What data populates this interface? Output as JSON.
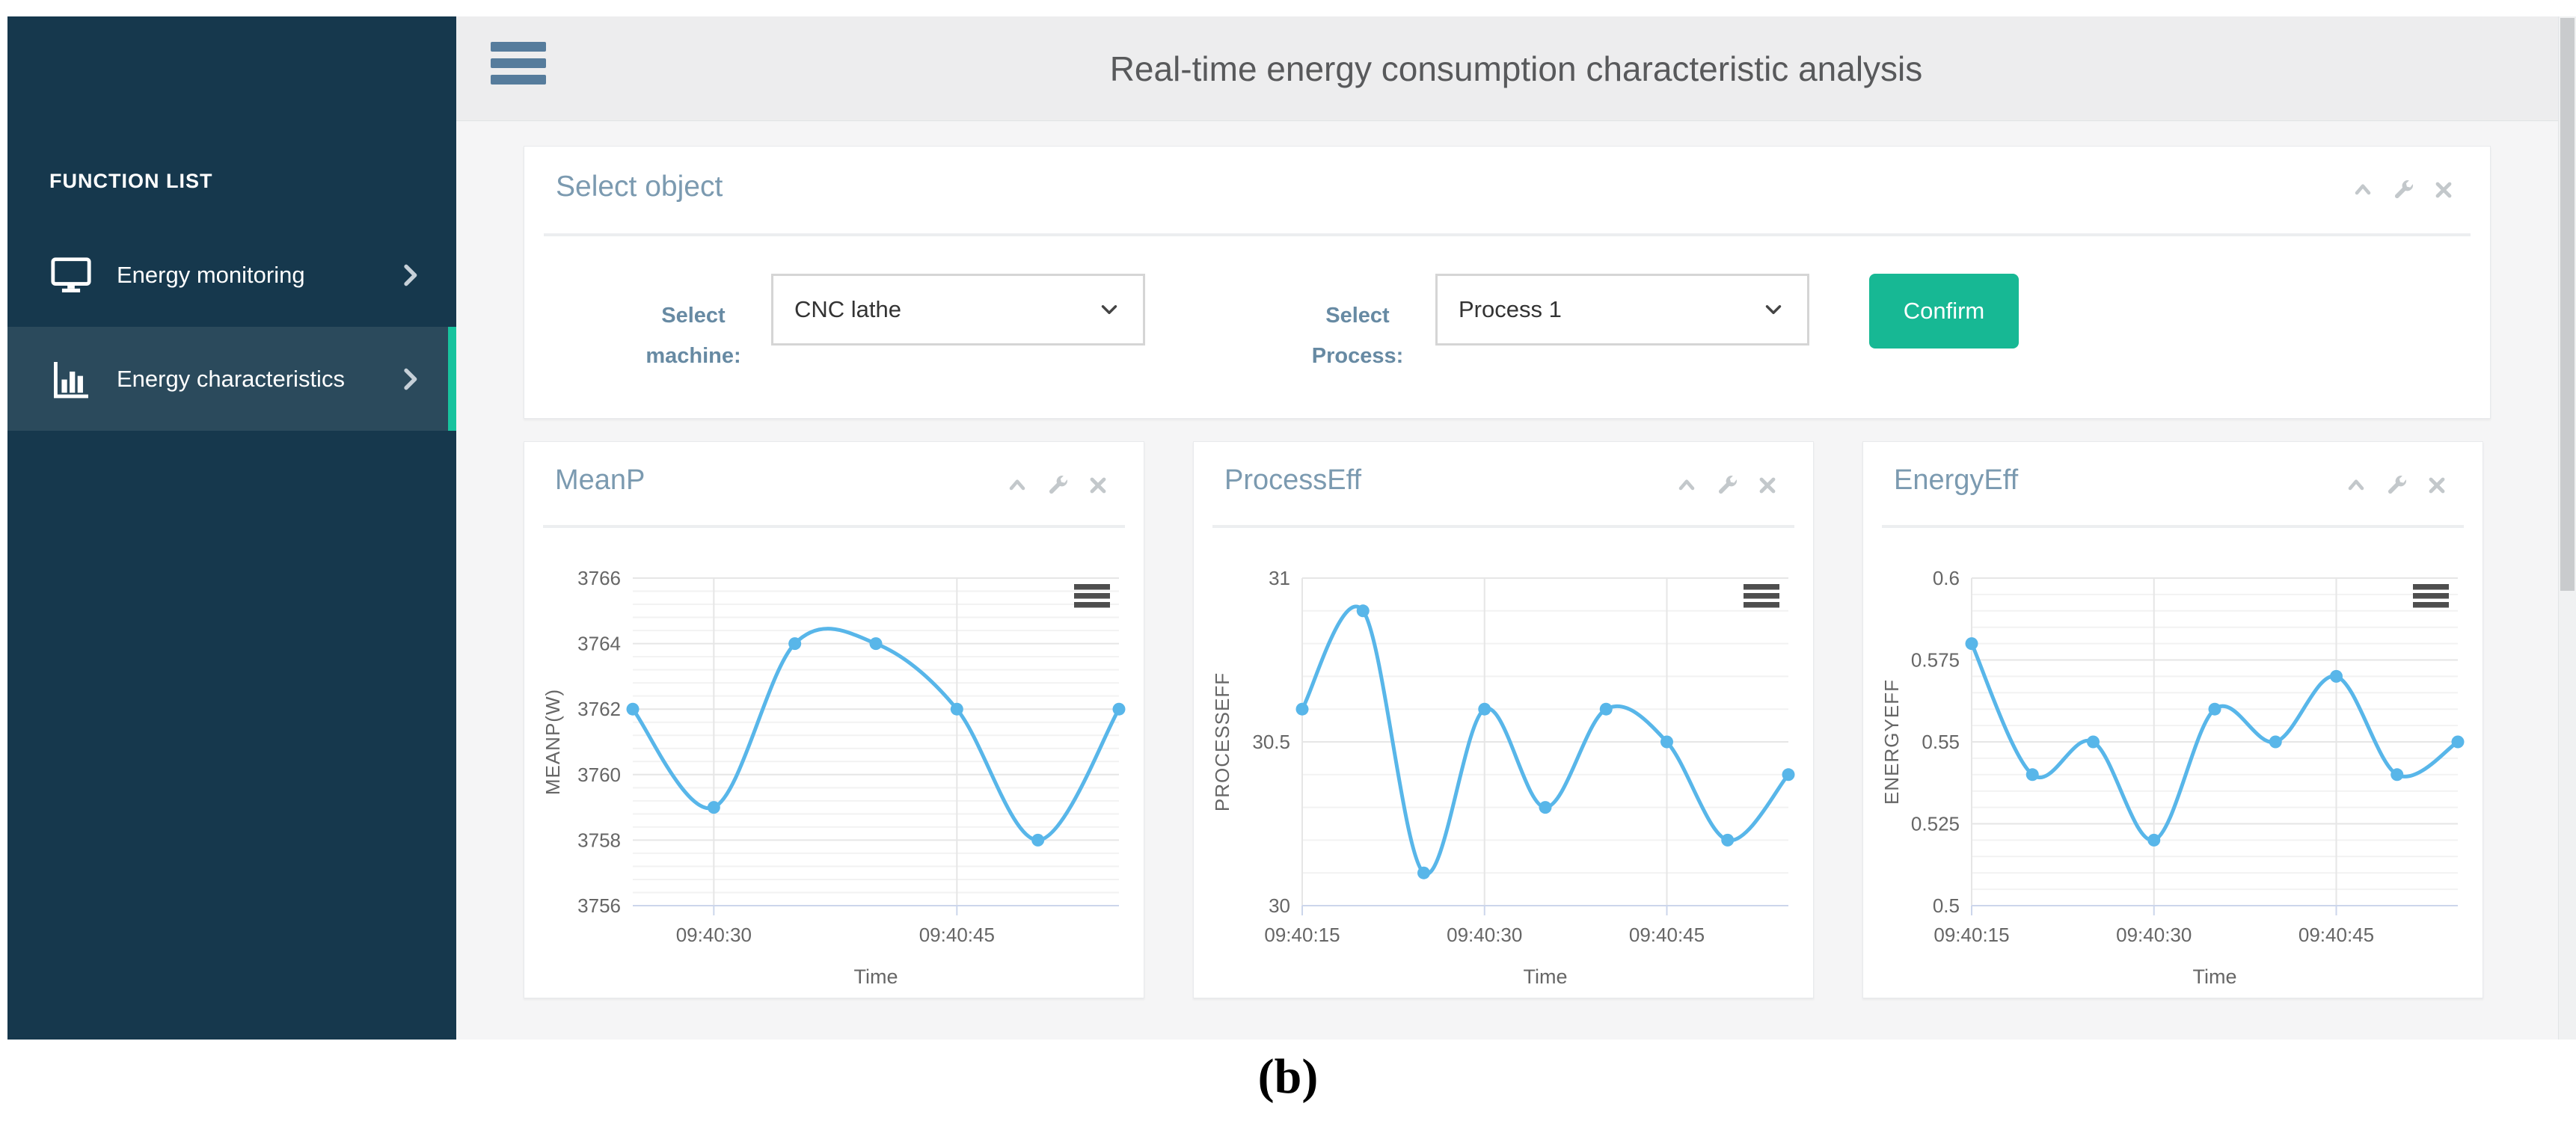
{
  "header": {
    "title": "Real-time energy consumption characteristic analysis",
    "menu_icon": "hamburger-menu-icon"
  },
  "sidebar": {
    "heading": "FUNCTION LIST",
    "items": [
      {
        "label": "Energy monitoring",
        "icon": "monitor-icon",
        "active": false
      },
      {
        "label": "Energy characteristics",
        "icon": "bar-chart-icon",
        "active": true
      }
    ]
  },
  "panel_tools": {
    "icons": [
      "chevron-up-icon",
      "wrench-icon",
      "close-icon"
    ]
  },
  "select_panel": {
    "title": "Select object",
    "machine_label": "Select machine:",
    "machine_value": "CNC lathe",
    "process_label": "Select Process:",
    "process_value": "Process 1",
    "confirm_label": "Confirm"
  },
  "chart_data": [
    {
      "type": "line",
      "title": "MeanP",
      "ylabel": "MEANP(W)",
      "xlabel": "Time",
      "x": [
        "09:40:25",
        "09:40:30",
        "09:40:35",
        "09:40:40",
        "09:40:45",
        "09:40:50",
        "09:40:55"
      ],
      "values": [
        3762,
        3759,
        3764,
        3764,
        3762,
        3758,
        3762
      ],
      "ylim": [
        3756,
        3766
      ],
      "yticks": [
        3756,
        3758,
        3760,
        3762,
        3764,
        3766
      ],
      "ytick_labels": [
        "3756",
        "3758",
        "3760",
        "3762",
        "3764",
        "3766"
      ],
      "xticks": [
        {
          "index": 1,
          "label": "09:40:30"
        },
        {
          "index": 4,
          "label": "09:40:45"
        }
      ],
      "grid": true,
      "legend": false
    },
    {
      "type": "line",
      "title": "ProcessEff",
      "ylabel": "PROCESSEFF",
      "xlabel": "Time",
      "x": [
        "09:40:15",
        "09:40:20",
        "09:40:25",
        "09:40:30",
        "09:40:35",
        "09:40:40",
        "09:40:45",
        "09:40:50",
        "09:40:55"
      ],
      "values": [
        30.6,
        30.9,
        30.1,
        30.6,
        30.3,
        30.6,
        30.5,
        30.2,
        30.4
      ],
      "ylim": [
        30,
        31
      ],
      "yticks": [
        30,
        30.5,
        31
      ],
      "ytick_labels": [
        "30",
        "30.5",
        "31"
      ],
      "xticks": [
        {
          "index": 0,
          "label": "09:40:15"
        },
        {
          "index": 3,
          "label": "09:40:30"
        },
        {
          "index": 6,
          "label": "09:40:45"
        }
      ],
      "grid": true,
      "legend": false
    },
    {
      "type": "line",
      "title": "EnergyEff",
      "ylabel": "ENERGYEFF",
      "xlabel": "Time",
      "x": [
        "09:40:15",
        "09:40:20",
        "09:40:25",
        "09:40:30",
        "09:40:35",
        "09:40:40",
        "09:40:45",
        "09:40:50",
        "09:40:55"
      ],
      "values": [
        0.58,
        0.54,
        0.55,
        0.52,
        0.56,
        0.55,
        0.57,
        0.54,
        0.55
      ],
      "ylim": [
        0.5,
        0.6
      ],
      "yticks": [
        0.5,
        0.525,
        0.55,
        0.575,
        0.6
      ],
      "ytick_labels": [
        "0.5",
        "0.525",
        "0.55",
        "0.575",
        "0.6"
      ],
      "xticks": [
        {
          "index": 0,
          "label": "09:40:15"
        },
        {
          "index": 3,
          "label": "09:40:30"
        },
        {
          "index": 6,
          "label": "09:40:45"
        }
      ],
      "grid": true,
      "legend": false
    }
  ],
  "caption": "(b)",
  "colors": {
    "sidebar_bg": "#16384d",
    "sidebar_active_bg": "#2b4a5c",
    "accent_green": "#17c39e",
    "confirm_green": "#17b894",
    "header_bg": "#ededee",
    "content_bg": "#f5f5f6",
    "panel_title": "#7b9ab0",
    "form_label": "#678aa3",
    "chart_line": "#58b6e9",
    "grid_major": "#e6e6e6",
    "grid_minor": "#f2f2f2",
    "axis_line": "#ccd6eb",
    "tick_text": "#666666",
    "icon_gray": "#c3c8cb",
    "toggle_blue": "#567c9c",
    "export_icon": "#4e4e4e"
  }
}
